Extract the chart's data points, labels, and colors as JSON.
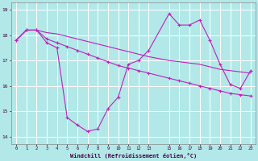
{
  "xlabel": "Windchill (Refroidissement éolien,°C)",
  "background_color": "#b2e8e8",
  "grid_color": "#c8c8c8",
  "line_color": "#bb22bb",
  "x_ticks": [
    0,
    1,
    2,
    3,
    4,
    5,
    6,
    7,
    8,
    9,
    10,
    11,
    12,
    13,
    15,
    16,
    17,
    18,
    19,
    20,
    21,
    22,
    23
  ],
  "x_tick_labels": [
    "0",
    "1",
    "2",
    "3",
    "4",
    "5",
    "6",
    "7",
    "8",
    "9",
    "10",
    "11",
    "12",
    "13",
    "15",
    "16",
    "17",
    "18",
    "19",
    "20",
    "21",
    "22",
    "23"
  ],
  "y_ticks": [
    14,
    15,
    16,
    17,
    18,
    19
  ],
  "ylim": [
    13.7,
    19.3
  ],
  "xlim": [
    -0.5,
    23.5
  ],
  "series1_x": [
    0,
    1,
    2,
    3,
    4,
    5,
    6,
    7,
    8,
    9,
    10,
    11,
    12,
    13,
    15,
    16,
    17,
    18,
    19,
    20,
    21,
    22,
    23
  ],
  "series1_y": [
    17.8,
    18.2,
    18.2,
    17.7,
    17.5,
    14.75,
    14.45,
    14.2,
    14.3,
    15.1,
    15.55,
    16.85,
    17.0,
    17.4,
    18.85,
    18.4,
    18.4,
    18.6,
    17.8,
    16.85,
    16.05,
    15.9,
    16.6
  ],
  "series2_x": [
    0,
    1,
    2,
    3,
    4,
    5,
    6,
    7,
    8,
    9,
    10,
    11,
    12,
    13,
    15,
    16,
    17,
    18,
    19,
    20,
    21,
    22,
    23
  ],
  "series2_y": [
    17.8,
    18.2,
    18.2,
    17.85,
    17.7,
    17.55,
    17.4,
    17.25,
    17.1,
    16.95,
    16.8,
    16.7,
    16.6,
    16.5,
    16.3,
    16.2,
    16.1,
    16.0,
    15.9,
    15.8,
    15.7,
    15.65,
    15.6
  ],
  "series3_x": [
    0,
    1,
    2,
    3,
    4,
    5,
    6,
    7,
    8,
    9,
    10,
    11,
    12,
    13,
    15,
    16,
    17,
    18,
    19,
    20,
    21,
    22,
    23
  ],
  "series3_y": [
    17.8,
    18.2,
    18.2,
    18.1,
    18.05,
    17.95,
    17.85,
    17.75,
    17.65,
    17.55,
    17.45,
    17.35,
    17.25,
    17.15,
    17.0,
    16.95,
    16.9,
    16.85,
    16.75,
    16.65,
    16.6,
    16.55,
    16.5
  ]
}
